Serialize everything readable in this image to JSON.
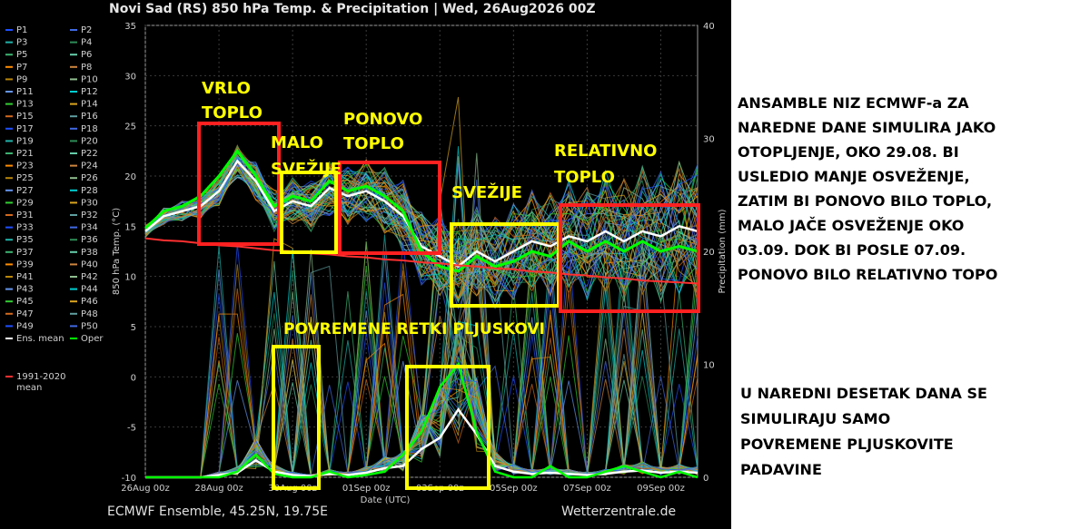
{
  "header": {
    "title": "Novi Sad  (RS)  850 hPa Temp. & Precipitation | Wed, 26Aug2026 00Z"
  },
  "footer": {
    "source": "ECMWF Ensemble, 45.25N, 19.75E",
    "site": "Wetterzentrale.de"
  },
  "legend": {
    "members": [
      "P1",
      "P2",
      "P3",
      "P4",
      "P5",
      "P6",
      "P7",
      "P8",
      "P9",
      "P10",
      "P11",
      "P12",
      "P13",
      "P14",
      "P15",
      "P16",
      "P17",
      "P18",
      "P19",
      "P20",
      "P21",
      "P22",
      "P23",
      "P24",
      "P25",
      "P26",
      "P27",
      "P28",
      "P29",
      "P30",
      "P31",
      "P32",
      "P33",
      "P34",
      "P35",
      "P36",
      "P37",
      "P38",
      "P39",
      "P40",
      "P41",
      "P42",
      "P43",
      "P44",
      "P45",
      "P46",
      "P47",
      "P48",
      "P49",
      "P50"
    ],
    "ens_mean": "Ens. mean",
    "oper": "Oper",
    "climate_line1": "1991-2020",
    "climate_line2": "mean"
  },
  "chart_data": {
    "type": "line",
    "xlabel": "Date (UTC)",
    "ylabel": "850 hPa Temp. (°C)",
    "y2label": "Precipitation (mm)",
    "ylim": [
      -10,
      35
    ],
    "y2lim": [
      0,
      40
    ],
    "yticks": [
      "35",
      "30",
      "25",
      "20",
      "15",
      "10",
      "5",
      "0",
      "-5",
      "-10"
    ],
    "y2ticks": [
      "40",
      "30",
      "20",
      "10",
      "0"
    ],
    "xticks": [
      "26Aug 00z",
      "28Aug 00z",
      "30Aug 00z",
      "01Sep 00z",
      "03Sep 00z",
      "05Sep 00z",
      "07Sep 00z",
      "09Sep 00z"
    ],
    "x_days": [
      0,
      0.5,
      1,
      1.5,
      2,
      2.5,
      3,
      3.5,
      4,
      4.5,
      5,
      5.5,
      6,
      6.5,
      7,
      7.5,
      8,
      8.5,
      9,
      9.5,
      10,
      10.5,
      11,
      11.5,
      12,
      12.5,
      13,
      13.5,
      14,
      14.5,
      15
    ],
    "colors": {
      "ens_mean": "#ffffff",
      "oper": "#00ff00",
      "climate": "#ff3030",
      "members": [
        "#1e4fff",
        "#4169e1",
        "#20b2aa",
        "#2e8b57",
        "#3cb371",
        "#66cdaa",
        "#ff8c00",
        "#cd853f",
        "#b8860b",
        "#8fbc8f",
        "#6495ed",
        "#00ced1",
        "#32cd32",
        "#daa520",
        "#d2691e",
        "#5f9ea0"
      ]
    },
    "series": [
      {
        "name": "Ens. mean",
        "axis": "temp",
        "values": [
          14.5,
          16,
          16.5,
          17,
          18.5,
          21.5,
          19.5,
          16.5,
          17.5,
          17,
          18.8,
          18,
          18.5,
          17.5,
          16,
          13,
          12,
          11,
          12.5,
          11.5,
          12.5,
          13.5,
          13,
          14,
          13.5,
          14.5,
          13.5,
          14.5,
          14,
          15,
          14.5
        ]
      },
      {
        "name": "Oper",
        "axis": "temp",
        "values": [
          14.8,
          16.5,
          17,
          18,
          20,
          22.5,
          20,
          17,
          18,
          17.5,
          19.5,
          18.5,
          19,
          18,
          16.5,
          12.5,
          11,
          10.5,
          12,
          11,
          11.5,
          12.5,
          12,
          13.5,
          12.5,
          13.5,
          12.5,
          13.5,
          12.5,
          13,
          12.5
        ]
      },
      {
        "name": "1991-2020 mean",
        "axis": "temp",
        "values": [
          13.8,
          13.6,
          13.5,
          13.3,
          13.1,
          13,
          12.8,
          12.6,
          12.5,
          12.3,
          12.2,
          12,
          11.9,
          11.7,
          11.6,
          11.4,
          11.3,
          11.1,
          11,
          10.8,
          10.7,
          10.5,
          10.4,
          10.2,
          10.1,
          9.9,
          9.8,
          9.6,
          9.5,
          9.4,
          9.3
        ]
      },
      {
        "name": "Ens. mean precipitation",
        "axis": "precip",
        "values": [
          0,
          0,
          0,
          0,
          0.2,
          0.4,
          1.5,
          0.5,
          0.2,
          0.1,
          0.3,
          0.2,
          0.4,
          0.8,
          1,
          2.5,
          3.5,
          6,
          3.8,
          1,
          0.5,
          0.3,
          0.4,
          0.3,
          0.2,
          0.3,
          0.5,
          0.6,
          0.4,
          0.5,
          0.4
        ]
      },
      {
        "name": "Oper precipitation",
        "axis": "precip",
        "values": [
          0,
          0,
          0,
          0,
          0,
          0.5,
          2,
          0.3,
          0,
          0,
          0.5,
          0,
          0.2,
          0.5,
          2,
          4,
          8,
          10,
          4,
          0.5,
          0,
          0,
          1,
          0,
          0,
          0.5,
          1,
          0.5,
          0,
          0.5,
          0
        ]
      }
    ],
    "annotations": [
      {
        "text": "VRLO",
        "text2": "TOPLO"
      },
      {
        "text": "MALO",
        "text2": "SVEŽIJE"
      },
      {
        "text": "PONOVO",
        "text2": "TOPLO"
      },
      {
        "text": "SVEŽIJE"
      },
      {
        "text": "RELATIVNO",
        "text2": "TOPLO"
      },
      {
        "text": "POVREMENE RETKI PLJUSKOVI"
      }
    ]
  },
  "comments": {
    "block1": [
      "ANSAMBLE NIZ ECMWF-a ZA",
      "NAREDNE DANE SIMULIRA JAKO",
      "OTOPLJENJE, OKO 29.08. BI",
      "USLEDIO MANJE OSVEŽENJE,",
      "ZATIM BI PONOVO BILO TOPLO,",
      "MALO JAČE OSVEŽENJE OKO",
      "03.09. DOK BI POSLE 07.09.",
      "PONOVO BILO RELATIVNO TOPO"
    ],
    "block2": [
      "U NAREDNI DESETAK DANA SE",
      "SIMULIRAJU SAMO",
      "POVREMENE PLJUSKOVITE",
      "PADAVINE"
    ]
  }
}
